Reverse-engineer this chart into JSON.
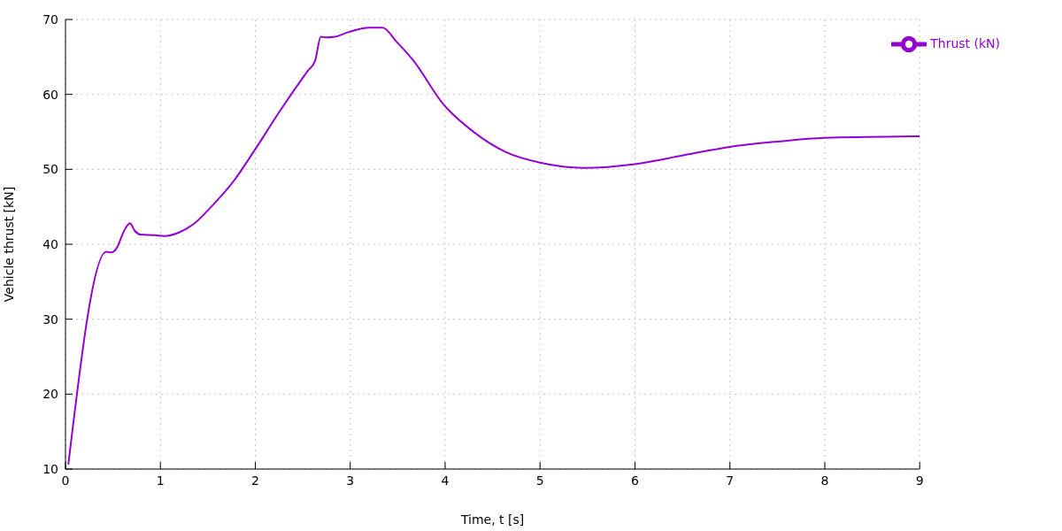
{
  "chart_data": {
    "type": "line",
    "xlabel": "Time, t [s]",
    "ylabel": "Vehicle thrust [kN]",
    "xlim": [
      0,
      9
    ],
    "xticks": [
      0,
      1,
      2,
      3,
      4,
      5,
      6,
      7,
      8,
      9
    ],
    "ylim": [
      10,
      70
    ],
    "yticks": [
      10,
      20,
      30,
      40,
      50,
      60,
      70
    ],
    "grid": true,
    "legend": "top right",
    "marker": "none",
    "line_style": "solid",
    "series": [
      {
        "name": "Thrust (kN)",
        "color": "#9400d3",
        "x": [
          0.03,
          0.43,
          0.48,
          0.53,
          0.63,
          0.68,
          0.73,
          0.79,
          0.95,
          1.04,
          1.2,
          1.36,
          1.52,
          1.77,
          1.99,
          2.26,
          2.55,
          2.63,
          2.69,
          2.74,
          2.84,
          2.98,
          3.2,
          3.34,
          3.49,
          3.66,
          3.98,
          4.31,
          4.64,
          5,
          5.46,
          6,
          6.52,
          7,
          7.5,
          8,
          9
        ],
        "values": [
          10.6,
          39.0,
          38.9,
          39.3,
          42.1,
          42.8,
          41.8,
          41.3,
          41.2,
          41.1,
          41.6,
          42.8,
          44.8,
          48.4,
          52.5,
          57.8,
          63.1,
          64.5,
          67.7,
          67.6,
          67.7,
          68.3,
          68.9,
          68.9,
          67.0,
          64.6,
          58.7,
          54.9,
          52.3,
          50.9,
          50.2,
          50.7,
          51.9,
          53.0,
          53.7,
          54.2,
          54.4
        ]
      }
    ]
  }
}
